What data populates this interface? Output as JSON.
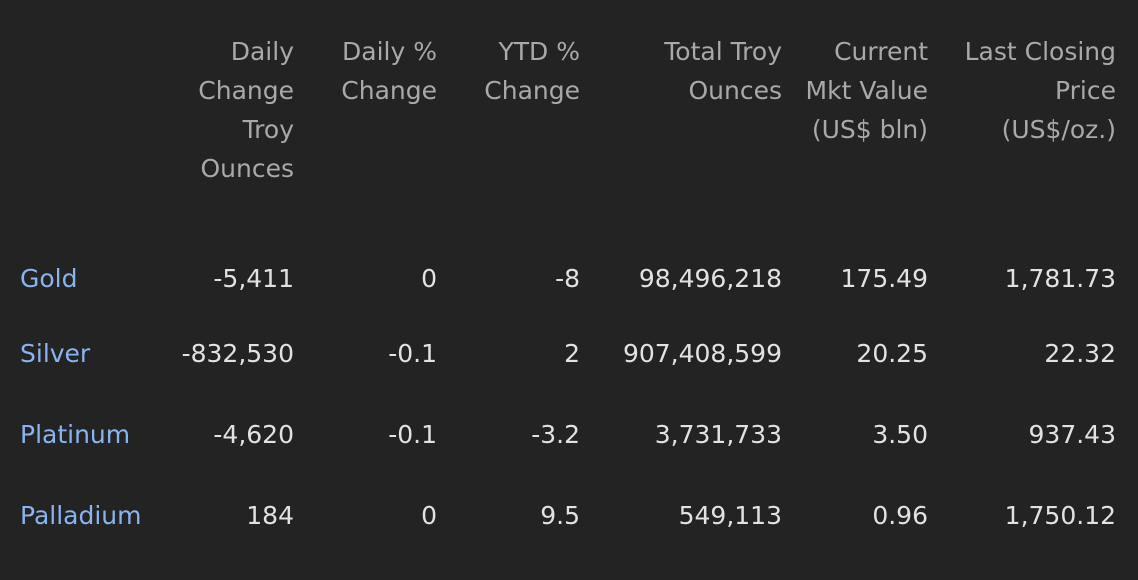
{
  "table": {
    "columns": [
      "",
      "Daily Change Troy Ounces",
      "Daily % Change",
      "YTD % Change",
      "Total Troy Ounces",
      "Current Mkt Value (US$ bln)",
      "Last Closing Price (US$/oz.)"
    ],
    "rows": [
      {
        "name": "Gold",
        "daily_change": "-5,411",
        "daily_pct": "0",
        "ytd_pct": "-8",
        "total": "98,496,218",
        "mkt_value": "175.49",
        "price": "1,781.73"
      },
      {
        "name": "Silver",
        "daily_change": "-832,530",
        "daily_pct": "-0.1",
        "ytd_pct": "2",
        "total": "907,408,599",
        "mkt_value": "20.25",
        "price": "22.32"
      },
      {
        "name": "Platinum",
        "daily_change": "-4,620",
        "daily_pct": "-0.1",
        "ytd_pct": "-3.2",
        "total": "3,731,733",
        "mkt_value": "3.50",
        "price": "937.43"
      },
      {
        "name": "Palladium",
        "daily_change": "184",
        "daily_pct": "0",
        "ytd_pct": "9.5",
        "total": "549,113",
        "mkt_value": "0.96",
        "price": "1,750.12"
      }
    ]
  },
  "colors": {
    "background": "#232323",
    "header_text": "#a9a9a9",
    "cell_text": "#e2e2e2",
    "link": "#8ab4f0"
  }
}
